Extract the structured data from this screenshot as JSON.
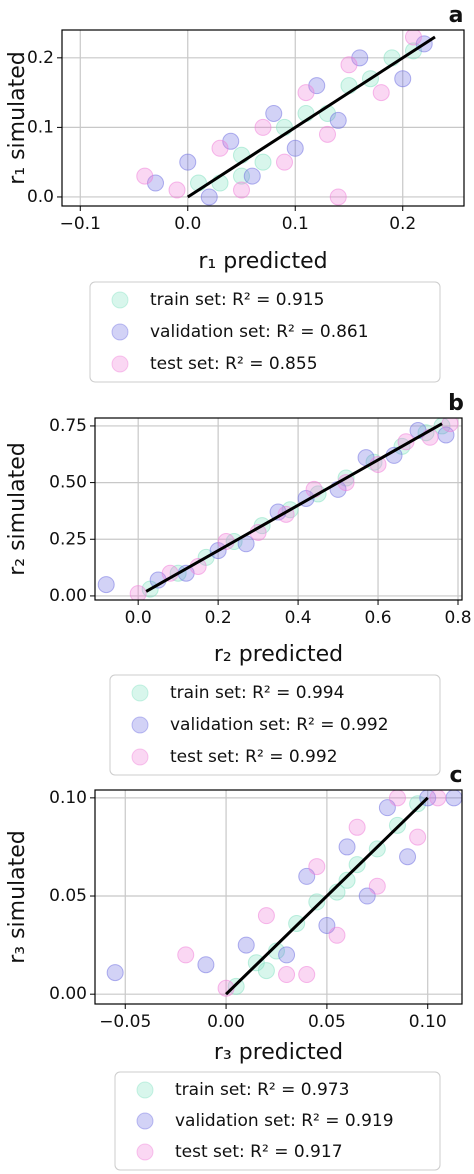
{
  "chart_data": [
    {
      "type": "scatter",
      "panel_label": "a",
      "xlabel": "r₁ predicted",
      "ylabel": "r₁ simulated",
      "xlim": [
        -0.117,
        0.257
      ],
      "ylim": [
        -0.013,
        0.24
      ],
      "xticks": [
        {
          "value": -0.1,
          "label": "−0.1"
        },
        {
          "value": 0,
          "label": "0.0"
        },
        0.1,
        0.2
      ],
      "yticks": [
        {
          "value": 0,
          "label": "0.0"
        },
        0.1,
        0.2
      ],
      "grid": true,
      "legend": "below",
      "series": [
        {
          "name": "train set: R² = 0.915",
          "color": "#7fe0c0",
          "x": [
            0.01,
            0.03,
            0.05,
            0.07,
            0.09,
            0.11,
            0.13,
            0.15,
            0.17,
            0.19,
            0.21,
            0.05
          ],
          "values": [
            0.02,
            0.02,
            0.06,
            0.05,
            0.1,
            0.12,
            0.12,
            0.16,
            0.17,
            0.2,
            0.21,
            0.03
          ]
        },
        {
          "name": "validation set: R² = 0.861",
          "color": "#6a6ae0",
          "x": [
            -0.03,
            0.0,
            0.02,
            0.04,
            0.06,
            0.08,
            0.1,
            0.12,
            0.14,
            0.16,
            0.2,
            0.22
          ],
          "values": [
            0.02,
            0.05,
            0.0,
            0.08,
            0.03,
            0.12,
            0.07,
            0.16,
            0.11,
            0.2,
            0.17,
            0.22
          ]
        },
        {
          "name": "test set: R² = 0.855",
          "color": "#f07ad8",
          "x": [
            -0.04,
            -0.01,
            0.03,
            0.05,
            0.07,
            0.09,
            0.11,
            0.13,
            0.15,
            0.18,
            0.21,
            0.14
          ],
          "values": [
            0.03,
            0.01,
            0.07,
            0.01,
            0.1,
            0.05,
            0.15,
            0.09,
            0.19,
            0.15,
            0.23,
            0.0
          ]
        }
      ],
      "fit_line": {
        "color": "#000000",
        "x": [
          0,
          0.23
        ],
        "values": [
          0,
          0.23
        ]
      }
    },
    {
      "type": "scatter",
      "panel_label": "b",
      "xlabel": "r₂ predicted",
      "ylabel": "r₂ simulated",
      "xlim": [
        -0.108,
        0.81
      ],
      "ylim": [
        -0.018,
        0.785
      ],
      "xticks": [
        {
          "value": 0,
          "label": "0.0"
        },
        0.2,
        0.4,
        0.6,
        0.8
      ],
      "yticks": [
        {
          "value": 0,
          "label": "0.00"
        },
        0.25,
        {
          "value": 0.5,
          "label": "0.50"
        },
        0.75
      ],
      "grid": true,
      "legend": "below",
      "series": [
        {
          "name": "train set: R² = 0.994",
          "color": "#7fe0c0",
          "x": [
            0.03,
            0.1,
            0.17,
            0.24,
            0.31,
            0.38,
            0.45,
            0.52,
            0.59,
            0.66,
            0.72,
            0.76
          ],
          "values": [
            0.03,
            0.1,
            0.17,
            0.24,
            0.31,
            0.38,
            0.45,
            0.52,
            0.59,
            0.66,
            0.72,
            0.75
          ]
        },
        {
          "name": "validation set: R² = 0.992",
          "color": "#6a6ae0",
          "x": [
            -0.08,
            0.05,
            0.12,
            0.2,
            0.27,
            0.35,
            0.42,
            0.5,
            0.57,
            0.64,
            0.7,
            0.77
          ],
          "values": [
            0.05,
            0.07,
            0.1,
            0.2,
            0.23,
            0.37,
            0.43,
            0.47,
            0.61,
            0.62,
            0.73,
            0.71
          ]
        },
        {
          "name": "test set: R² = 0.992",
          "color": "#f07ad8",
          "x": [
            0.0,
            0.08,
            0.15,
            0.22,
            0.3,
            0.37,
            0.44,
            0.52,
            0.6,
            0.67,
            0.73,
            0.78
          ],
          "values": [
            0.01,
            0.1,
            0.13,
            0.24,
            0.28,
            0.36,
            0.47,
            0.5,
            0.58,
            0.68,
            0.7,
            0.76
          ]
        }
      ],
      "fit_line": {
        "color": "#000000",
        "x": [
          0.02,
          0.76
        ],
        "values": [
          0.02,
          0.76
        ]
      }
    },
    {
      "type": "scatter",
      "panel_label": "c",
      "xlabel": "r₃ predicted",
      "ylabel": "r₃ simulated",
      "xlim": [
        -0.065,
        0.117
      ],
      "ylim": [
        -0.005,
        0.104
      ],
      "xticks": [
        {
          "value": -0.05,
          "label": "−0.05"
        },
        {
          "value": 0,
          "label": "0.00"
        },
        0.05,
        {
          "value": 0.1,
          "label": "0.10"
        }
      ],
      "yticks": [
        {
          "value": 0,
          "label": "0.00"
        },
        0.05,
        {
          "value": 0.1,
          "label": "0.10"
        }
      ],
      "grid": true,
      "legend": "below",
      "series": [
        {
          "name": "train set: R² = 0.973",
          "color": "#7fe0c0",
          "x": [
            0.005,
            0.015,
            0.025,
            0.035,
            0.045,
            0.055,
            0.065,
            0.075,
            0.085,
            0.095,
            0.02,
            0.06
          ],
          "values": [
            0.004,
            0.016,
            0.022,
            0.036,
            0.047,
            0.052,
            0.066,
            0.074,
            0.086,
            0.097,
            0.012,
            0.058
          ]
        },
        {
          "name": "validation set: R² = 0.919",
          "color": "#6a6ae0",
          "x": [
            -0.055,
            -0.01,
            0.01,
            0.03,
            0.04,
            0.05,
            0.06,
            0.07,
            0.08,
            0.09,
            0.1,
            0.113
          ],
          "values": [
            0.011,
            0.015,
            0.025,
            0.02,
            0.06,
            0.035,
            0.075,
            0.05,
            0.095,
            0.07,
            0.1,
            0.1
          ]
        },
        {
          "name": "test set: R² = 0.917",
          "color": "#f07ad8",
          "x": [
            -0.02,
            0.0,
            0.02,
            0.03,
            0.045,
            0.055,
            0.065,
            0.075,
            0.085,
            0.095,
            0.105,
            0.04
          ],
          "values": [
            0.02,
            0.003,
            0.04,
            0.01,
            0.065,
            0.03,
            0.085,
            0.055,
            0.1,
            0.08,
            0.1,
            0.01
          ]
        }
      ],
      "fit_line": {
        "color": "#000000",
        "x": [
          0,
          0.1
        ],
        "values": [
          0,
          0.1
        ]
      }
    }
  ]
}
